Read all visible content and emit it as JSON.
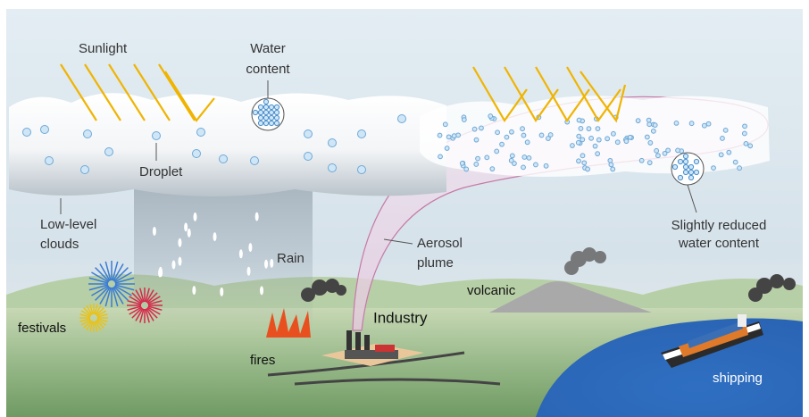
{
  "labels": {
    "sunlight": "Sunlight",
    "water_content": [
      "Water",
      "content"
    ],
    "droplet": "Droplet",
    "low_level_clouds": [
      "Low-level",
      "clouds"
    ],
    "rain": "Rain",
    "aerosol_plume": [
      "Aerosol",
      "plume"
    ],
    "reduced_water": [
      "Slightly reduced",
      "water content"
    ],
    "volcanic": "volcanic",
    "industry": "Industry",
    "festivals": "festivals",
    "fires": "fires",
    "shipping": "shipping"
  }
}
